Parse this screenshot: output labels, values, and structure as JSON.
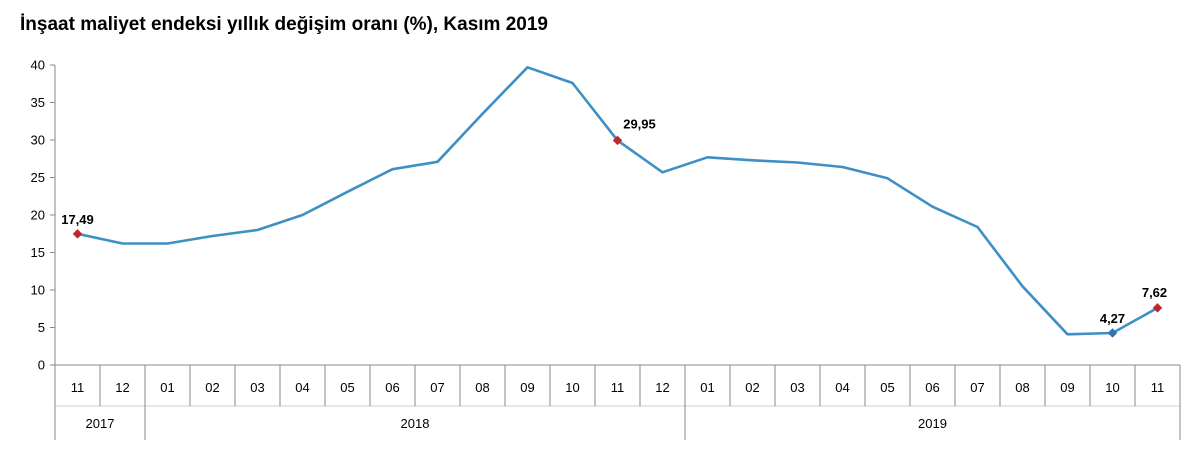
{
  "chart_data": {
    "type": "line",
    "title": "İnşaat maliyet endeksi yıllık değişim oranı (%), Kasım 2019",
    "xlabel": "",
    "ylabel": "",
    "ylim": [
      0,
      40
    ],
    "yticks": [
      "0",
      "5",
      "10",
      "15",
      "20",
      "25",
      "30",
      "35",
      "40"
    ],
    "categories": [
      "11",
      "12",
      "01",
      "02",
      "03",
      "04",
      "05",
      "06",
      "07",
      "08",
      "09",
      "10",
      "11",
      "12",
      "01",
      "02",
      "03",
      "04",
      "05",
      "06",
      "07",
      "08",
      "09",
      "10",
      "11"
    ],
    "years": [
      {
        "label": "2017",
        "start": 0,
        "end": 1
      },
      {
        "label": "2018",
        "start": 2,
        "end": 13
      },
      {
        "label": "2019",
        "start": 14,
        "end": 24
      }
    ],
    "series": [
      {
        "values": [
          17.49,
          16.2,
          16.2,
          17.2,
          18.0,
          20.0,
          23.1,
          26.1,
          27.1,
          33.5,
          39.7,
          37.6,
          29.95,
          25.7,
          27.7,
          27.3,
          27.0,
          26.4,
          24.9,
          21.1,
          18.4,
          10.5,
          4.1,
          4.27,
          7.62
        ]
      }
    ],
    "labeled_points": [
      {
        "index": 0,
        "label": "17,49",
        "color": "#c0272d"
      },
      {
        "index": 12,
        "label": "29,95",
        "color": "#c0272d"
      },
      {
        "index": 23,
        "label": "4,27",
        "color": "#2e75b6"
      },
      {
        "index": 24,
        "label": "7,62",
        "color": "#c0272d"
      }
    ],
    "line_color": "#3d8fc4",
    "grid": false,
    "legend": "none"
  }
}
